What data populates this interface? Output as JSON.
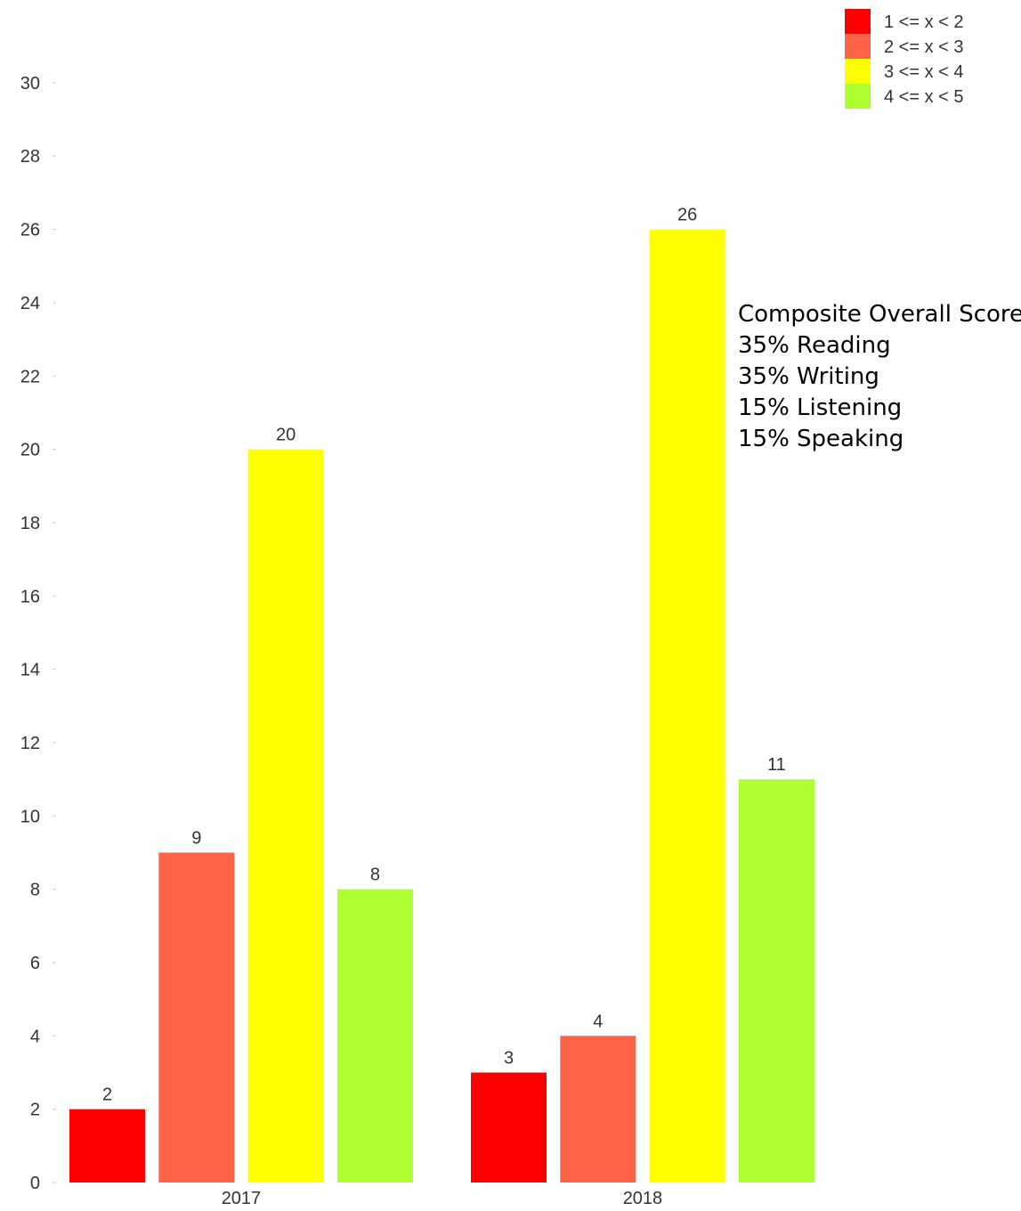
{
  "chart_data": {
    "type": "bar",
    "title": "",
    "xlabel": "",
    "ylabel": "",
    "categories": [
      "2017",
      "2018"
    ],
    "series": [
      {
        "name": "1 <= x < 2",
        "color": "#ff0000",
        "values": [
          2,
          3
        ]
      },
      {
        "name": "2 <= x < 3",
        "color": "#ff6347",
        "values": [
          9,
          4
        ]
      },
      {
        "name": "3 <= x < 4",
        "color": "#ffff00",
        "values": [
          20,
          26
        ]
      },
      {
        "name": "4 <= x < 5",
        "color": "#adff2f",
        "values": [
          8,
          11
        ]
      }
    ],
    "ylim": [
      0,
      30
    ],
    "y_ticks": [
      "0",
      "2",
      "4",
      "6",
      "8",
      "10",
      "12",
      "14",
      "16",
      "18",
      "20",
      "22",
      "24",
      "26",
      "28",
      "30"
    ],
    "grid": false,
    "legend_position": "top-right",
    "data_labels": true,
    "annotation": [
      "Composite Overall Score",
      "35% Reading",
      "35% Writing",
      "15% Listening",
      "15% Speaking"
    ]
  }
}
